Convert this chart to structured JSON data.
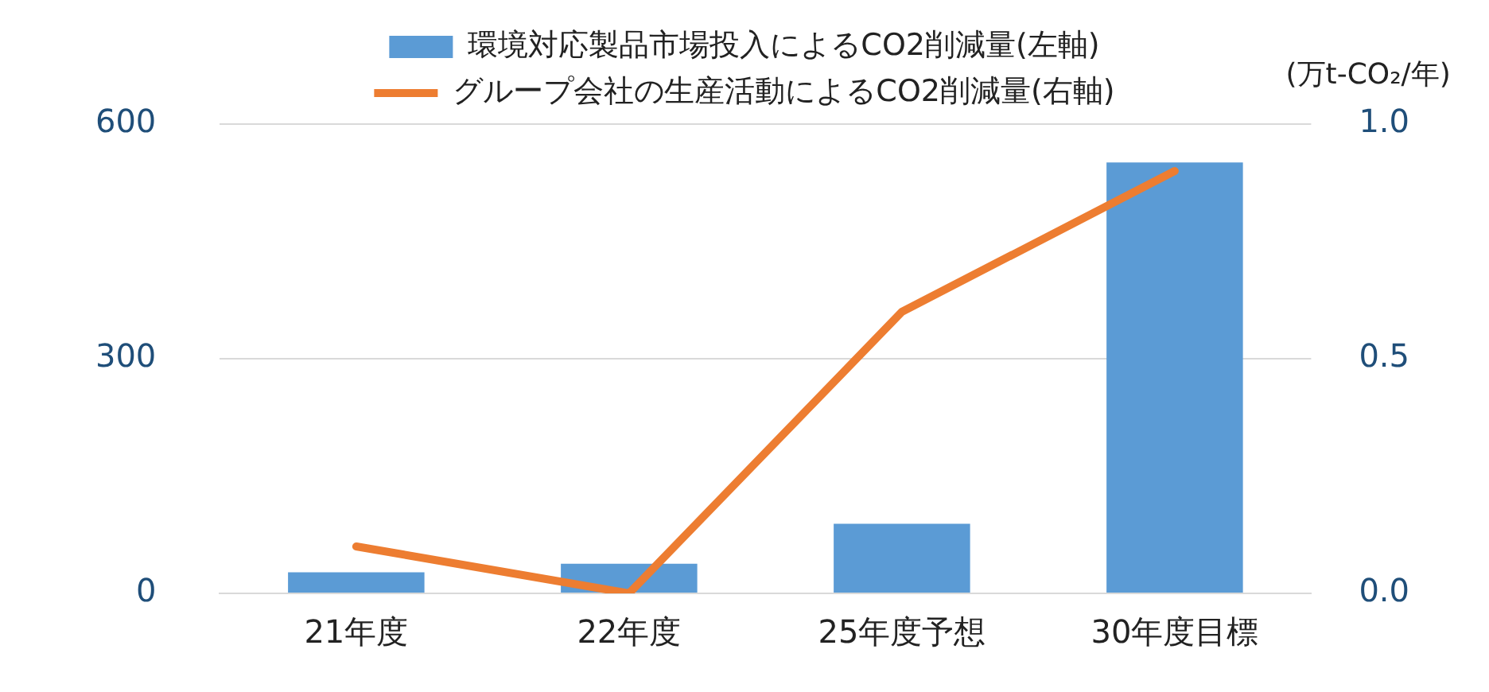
{
  "chart_data": {
    "type": "bar",
    "categories": [
      "21年度",
      "22年度",
      "25年度予想",
      "30年度目標"
    ],
    "series": [
      {
        "name": "環境対応製品市場投入によるCO2削減量(左軸)",
        "color": "#5b9bd5",
        "values": [
          27,
          38,
          89,
          551
        ]
      },
      {
        "name": "グループ会社の生産活動によるCO2削減量(右軸)",
        "type": "line",
        "axis": "y2",
        "color": "#ed7d31",
        "values": [
          0.1,
          0.0,
          0.6,
          0.9
        ]
      }
    ],
    "y2label": "(万t-CO₂/年)",
    "ylim": [
      0,
      600
    ],
    "yticks": [
      0,
      300,
      600
    ],
    "y2lim": [
      0,
      1.0
    ],
    "y2ticks": [
      {
        "value": 0,
        "label": "0.0"
      },
      {
        "value": 0.5,
        "label": "0.5"
      },
      {
        "value": 1.0,
        "label": "1.0"
      }
    ],
    "grid": "y",
    "legend": "top",
    "marker": "none"
  }
}
